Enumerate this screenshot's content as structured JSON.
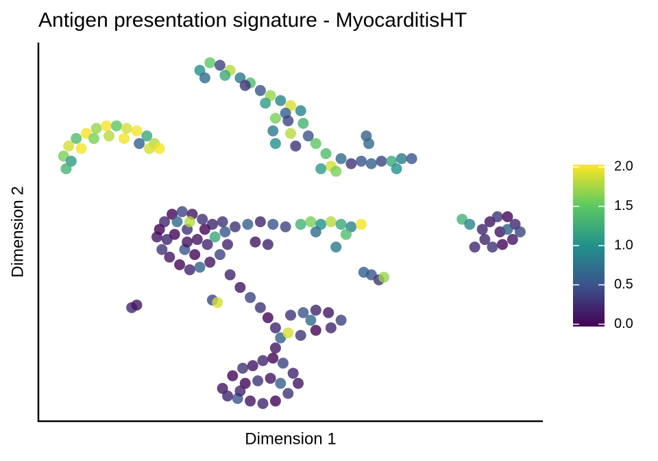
{
  "chart_data": {
    "type": "scatter",
    "title": "Antigen presentation signature - MyocarditisHT",
    "xlabel": "Dimension 1",
    "ylabel": "Dimension 2",
    "xlim": [
      0,
      20
    ],
    "ylim": [
      0,
      15
    ],
    "x": [
      1.0,
      1.2,
      1.5,
      1.9,
      2.3,
      2.7,
      3.1,
      3.5,
      3.9,
      4.3,
      4.6,
      4.8,
      1.3,
      1.7,
      2.2,
      2.8,
      3.4,
      4.0,
      4.4,
      1.1,
      6.4,
      6.8,
      7.2,
      7.6,
      8.0,
      8.4,
      8.8,
      9.2,
      9.6,
      10.0,
      6.6,
      7.4,
      8.2,
      9.0,
      9.8,
      9.4,
      9.9,
      10.5,
      9.3,
      10.0,
      10.7,
      9.4,
      10.2,
      11.0,
      10.4,
      11.4,
      11.6,
      12.0,
      12.4,
      12.8,
      13.2,
      13.6,
      14.0,
      14.4,
      14.8,
      11.8,
      14.2,
      13.0,
      13.1,
      11.2,
      4.7,
      5.0,
      5.3,
      5.7,
      6.1,
      6.5,
      6.9,
      7.4,
      4.9,
      5.2,
      5.6,
      6.0,
      6.4,
      6.8,
      7.2,
      7.5,
      5.4,
      5.9,
      6.3,
      6.7,
      5.8,
      6.2,
      5.1,
      6.0,
      7.0,
      5.5,
      6.6,
      5.9,
      7.3,
      4.8,
      7.8,
      8.3,
      8.8,
      9.3,
      9.8,
      8.6,
      9.1,
      10.4,
      10.8,
      11.2,
      11.6,
      12.0,
      12.4,
      12.8,
      11.0,
      12.2,
      11.8,
      17.6,
      17.9,
      18.2,
      18.6,
      18.9,
      19.1,
      18.8,
      18.4,
      18.0,
      17.7,
      18.3,
      18.6,
      16.8,
      17.1,
      17.3,
      7.6,
      8.0,
      8.4,
      8.8,
      9.1,
      9.4,
      9.6,
      9.4,
      10.0,
      10.5,
      11.0,
      11.5,
      12.0,
      11.6,
      11.0,
      10.4,
      9.9,
      10.8,
      7.3,
      7.7,
      8.1,
      8.5,
      8.9,
      9.3,
      9.7,
      10.1,
      10.3,
      9.9,
      9.4,
      8.9,
      8.4,
      7.9,
      7.5,
      8.2,
      8.7,
      9.2,
      9.6,
      8.0,
      3.7,
      3.9,
      6.9,
      7.1,
      13.2,
      13.5,
      13.7,
      12.9
    ],
    "y": [
      10.5,
      10.9,
      11.2,
      11.4,
      11.6,
      11.7,
      11.7,
      11.6,
      11.5,
      11.3,
      11.0,
      10.8,
      10.3,
      10.8,
      11.2,
      11.3,
      11.2,
      11.0,
      10.8,
      10.0,
      13.9,
      14.2,
      14.1,
      13.9,
      13.6,
      13.4,
      13.1,
      12.9,
      12.7,
      12.5,
      13.6,
      13.7,
      13.3,
      12.6,
      12.2,
      12.0,
      11.9,
      11.8,
      11.5,
      11.4,
      11.3,
      11.0,
      10.9,
      11.0,
      12.3,
      10.6,
      10.1,
      10.4,
      10.2,
      10.3,
      10.2,
      10.3,
      10.3,
      10.4,
      10.4,
      9.9,
      10.0,
      11.3,
      11.0,
      10.0,
      7.3,
      7.9,
      8.2,
      8.3,
      8.2,
      8.0,
      7.8,
      7.5,
      6.8,
      6.5,
      6.2,
      6.0,
      6.1,
      6.3,
      6.6,
      7.0,
      7.4,
      7.6,
      7.2,
      7.0,
      6.8,
      6.6,
      7.2,
      7.9,
      7.3,
      7.9,
      7.6,
      7.1,
      7.9,
      7.6,
      7.7,
      7.8,
      7.9,
      7.8,
      7.7,
      7.1,
      7.0,
      7.8,
      7.9,
      7.8,
      7.9,
      7.8,
      7.7,
      7.8,
      7.5,
      7.4,
      6.9,
      7.6,
      7.9,
      8.1,
      8.1,
      7.8,
      7.5,
      7.2,
      7.0,
      6.9,
      7.2,
      7.5,
      7.6,
      8.0,
      7.8,
      6.9,
      5.8,
      5.3,
      4.9,
      4.5,
      4.1,
      3.7,
      3.3,
      2.9,
      4.2,
      4.3,
      4.4,
      4.3,
      4.0,
      3.7,
      3.6,
      3.4,
      3.5,
      4.0,
      1.3,
      1.8,
      2.1,
      2.2,
      2.4,
      2.5,
      2.3,
      1.9,
      1.5,
      1.1,
      0.8,
      0.7,
      0.8,
      0.9,
      1.0,
      1.5,
      1.6,
      1.7,
      1.5,
      1.2,
      4.5,
      4.6,
      4.8,
      4.7,
      5.8,
      5.6,
      5.7,
      5.9
    ],
    "values": [
      1.6,
      1.9,
      1.4,
      2.0,
      1.7,
      2.0,
      1.5,
      1.9,
      2.0,
      1.2,
      1.8,
      2.0,
      1.1,
      2.0,
      1.6,
      1.8,
      2.0,
      0.6,
      1.9,
      1.3,
      1.0,
      1.5,
      0.4,
      1.8,
      0.8,
      1.4,
      0.5,
      1.7,
      0.9,
      1.9,
      0.7,
      1.2,
      0.3,
      1.1,
      0.6,
      1.6,
      0.4,
      1.3,
      0.8,
      1.8,
      0.5,
      1.0,
      0.3,
      1.5,
      0.9,
      1.4,
      1.9,
      0.7,
      0.3,
      0.5,
      0.6,
      0.4,
      1.2,
      0.8,
      0.5,
      1.6,
      1.0,
      0.6,
      0.7,
      1.1,
      0.1,
      0.2,
      0.0,
      0.4,
      0.1,
      0.3,
      0.2,
      0.5,
      0.3,
      0.1,
      0.0,
      0.2,
      0.6,
      0.1,
      0.4,
      0.2,
      0.0,
      0.3,
      0.1,
      0.2,
      0.5,
      0.0,
      0.2,
      1.8,
      1.2,
      0.7,
      0.0,
      0.1,
      0.3,
      0.0,
      0.3,
      0.6,
      0.2,
      0.5,
      0.4,
      0.1,
      0.2,
      1.3,
      1.6,
      1.0,
      1.8,
      1.2,
      0.9,
      2.0,
      0.7,
      1.4,
      0.8,
      0.2,
      0.1,
      0.3,
      0.0,
      0.2,
      0.4,
      0.1,
      0.0,
      0.3,
      0.2,
      0.1,
      0.6,
      1.3,
      0.9,
      0.2,
      0.2,
      0.1,
      0.4,
      0.3,
      0.0,
      0.2,
      0.6,
      0.1,
      0.3,
      0.5,
      0.2,
      0.1,
      0.4,
      0.2,
      0.0,
      0.3,
      1.9,
      0.7,
      0.1,
      0.0,
      0.3,
      0.1,
      0.2,
      0.0,
      0.4,
      0.2,
      0.1,
      0.3,
      0.0,
      0.2,
      0.1,
      0.5,
      0.2,
      0.0,
      0.3,
      0.1,
      0.6,
      0.2,
      0.2,
      0.1,
      0.4,
      1.9,
      0.5,
      0.3,
      1.7,
      0.6
    ],
    "clim": [
      -0.03,
      2.03
    ],
    "cticks": [
      {
        "value": 0,
        "label": "0.0"
      },
      {
        "value": 0.5,
        "label": "0.5"
      },
      {
        "value": 1,
        "label": "1.0"
      },
      {
        "value": 1.5,
        "label": "1.5"
      },
      {
        "value": 2,
        "label": "2.0"
      }
    ],
    "colormap": [
      "#440154",
      "#3b528b",
      "#21918c",
      "#5ec962",
      "#fde725"
    ],
    "point_opacity": 0.8
  }
}
